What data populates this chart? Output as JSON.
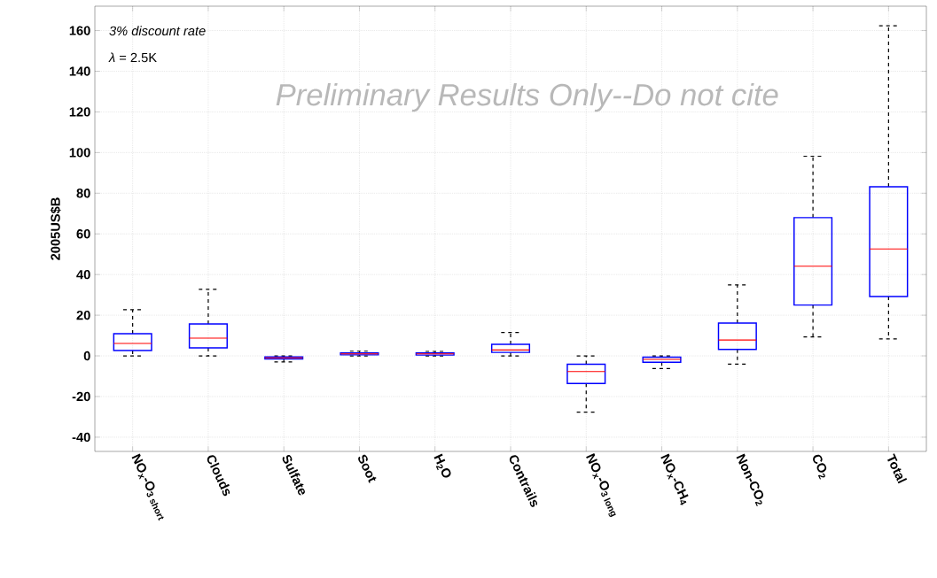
{
  "chart_data": {
    "type": "box",
    "ylabel": "2005US$B",
    "categories": [
      "NO$_{x}$-O$_{3 short}$",
      "Clouds",
      "Sulfate",
      "Soot",
      "H$_{2}$O",
      "Contrails",
      "NO$_{x}$-O$_{3 long}$",
      "NO$_{x}$-CH$_{4}$",
      "Non-CO$_{2}$",
      "CO$_{2}$",
      "Total"
    ],
    "boxes": [
      {
        "low": 0,
        "q1": 2.6,
        "median": 6.1,
        "q3": 10.9,
        "high": 22.7
      },
      {
        "low": 0,
        "q1": 3.9,
        "median": 8.7,
        "q3": 15.7,
        "high": 32.7
      },
      {
        "low": -3,
        "q1": -1.5,
        "median": -1,
        "q3": -0.5,
        "high": 0
      },
      {
        "low": 0,
        "q1": 0.5,
        "median": 1,
        "q3": 1.4,
        "high": 2.3
      },
      {
        "low": 0,
        "q1": 0.4,
        "median": 1,
        "q3": 1.4,
        "high": 2.2
      },
      {
        "low": 0,
        "q1": 1.7,
        "median": 2.9,
        "q3": 5.7,
        "high": 11.5
      },
      {
        "low": -27.7,
        "q1": -13.6,
        "median": -7.7,
        "q3": -4.1,
        "high": 0
      },
      {
        "low": -6.2,
        "q1": -3.1,
        "median": -1.7,
        "q3": -0.6,
        "high": 0
      },
      {
        "low": -4.1,
        "q1": 3.2,
        "median": 7.8,
        "q3": 16.1,
        "high": 34.9
      },
      {
        "low": 9.3,
        "q1": 25,
        "median": 44.1,
        "q3": 68,
        "high": 98.2
      },
      {
        "low": 8.3,
        "q1": 29.2,
        "median": 52.6,
        "q3": 83.2,
        "high": 162.4
      }
    ],
    "color": "#0000ff",
    "ylim": [
      -47,
      172
    ],
    "yticks": [
      -40,
      -20,
      0,
      20,
      40,
      60,
      80,
      100,
      120,
      140,
      160
    ],
    "grid": true,
    "line_style": "dashed",
    "annotations": [
      "*3% discount rate*",
      "*λ* = 2.5K",
      "*Preliminary Results Only--Do not cite*"
    ]
  }
}
